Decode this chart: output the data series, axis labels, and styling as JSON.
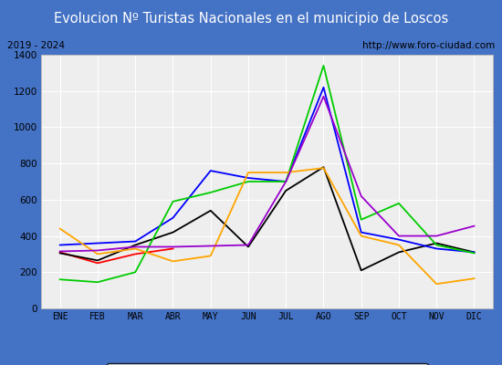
{
  "title": "Evolucion Nº Turistas Nacionales en el municipio de Loscos",
  "subtitle_left": "2019 - 2024",
  "subtitle_right": "http://www.foro-ciudad.com",
  "months": [
    "ENE",
    "FEB",
    "MAR",
    "ABR",
    "MAY",
    "JUN",
    "JUL",
    "AGO",
    "SEP",
    "OCT",
    "NOV",
    "DIC"
  ],
  "series": {
    "2024": [
      310,
      250,
      300,
      330,
      null,
      null,
      null,
      null,
      null,
      null,
      null,
      null
    ],
    "2023": [
      305,
      265,
      350,
      420,
      540,
      340,
      650,
      780,
      210,
      310,
      360,
      310
    ],
    "2022": [
      350,
      360,
      370,
      500,
      760,
      720,
      700,
      1220,
      420,
      380,
      330,
      310
    ],
    "2021": [
      160,
      145,
      200,
      590,
      640,
      700,
      700,
      1340,
      490,
      580,
      350,
      305
    ],
    "2020": [
      440,
      300,
      330,
      260,
      290,
      750,
      750,
      775,
      400,
      350,
      135,
      165
    ],
    "2019": [
      315,
      320,
      340,
      340,
      345,
      350,
      700,
      1170,
      620,
      400,
      400,
      455
    ]
  },
  "colors": {
    "2024": "#ff0000",
    "2023": "#000000",
    "2022": "#0000ff",
    "2021": "#00cc00",
    "2020": "#ffa500",
    "2019": "#9900cc"
  },
  "ylim": [
    0,
    1400
  ],
  "yticks": [
    0,
    200,
    400,
    600,
    800,
    1000,
    1200,
    1400
  ],
  "title_bg": "#4472c4",
  "title_color": "#ffffff",
  "title_fontsize": 10.5,
  "plot_bg": "#eeeeee",
  "border_color": "#4472c4",
  "grid_color": "#ffffff",
  "info_bg": "#f8f8f8"
}
